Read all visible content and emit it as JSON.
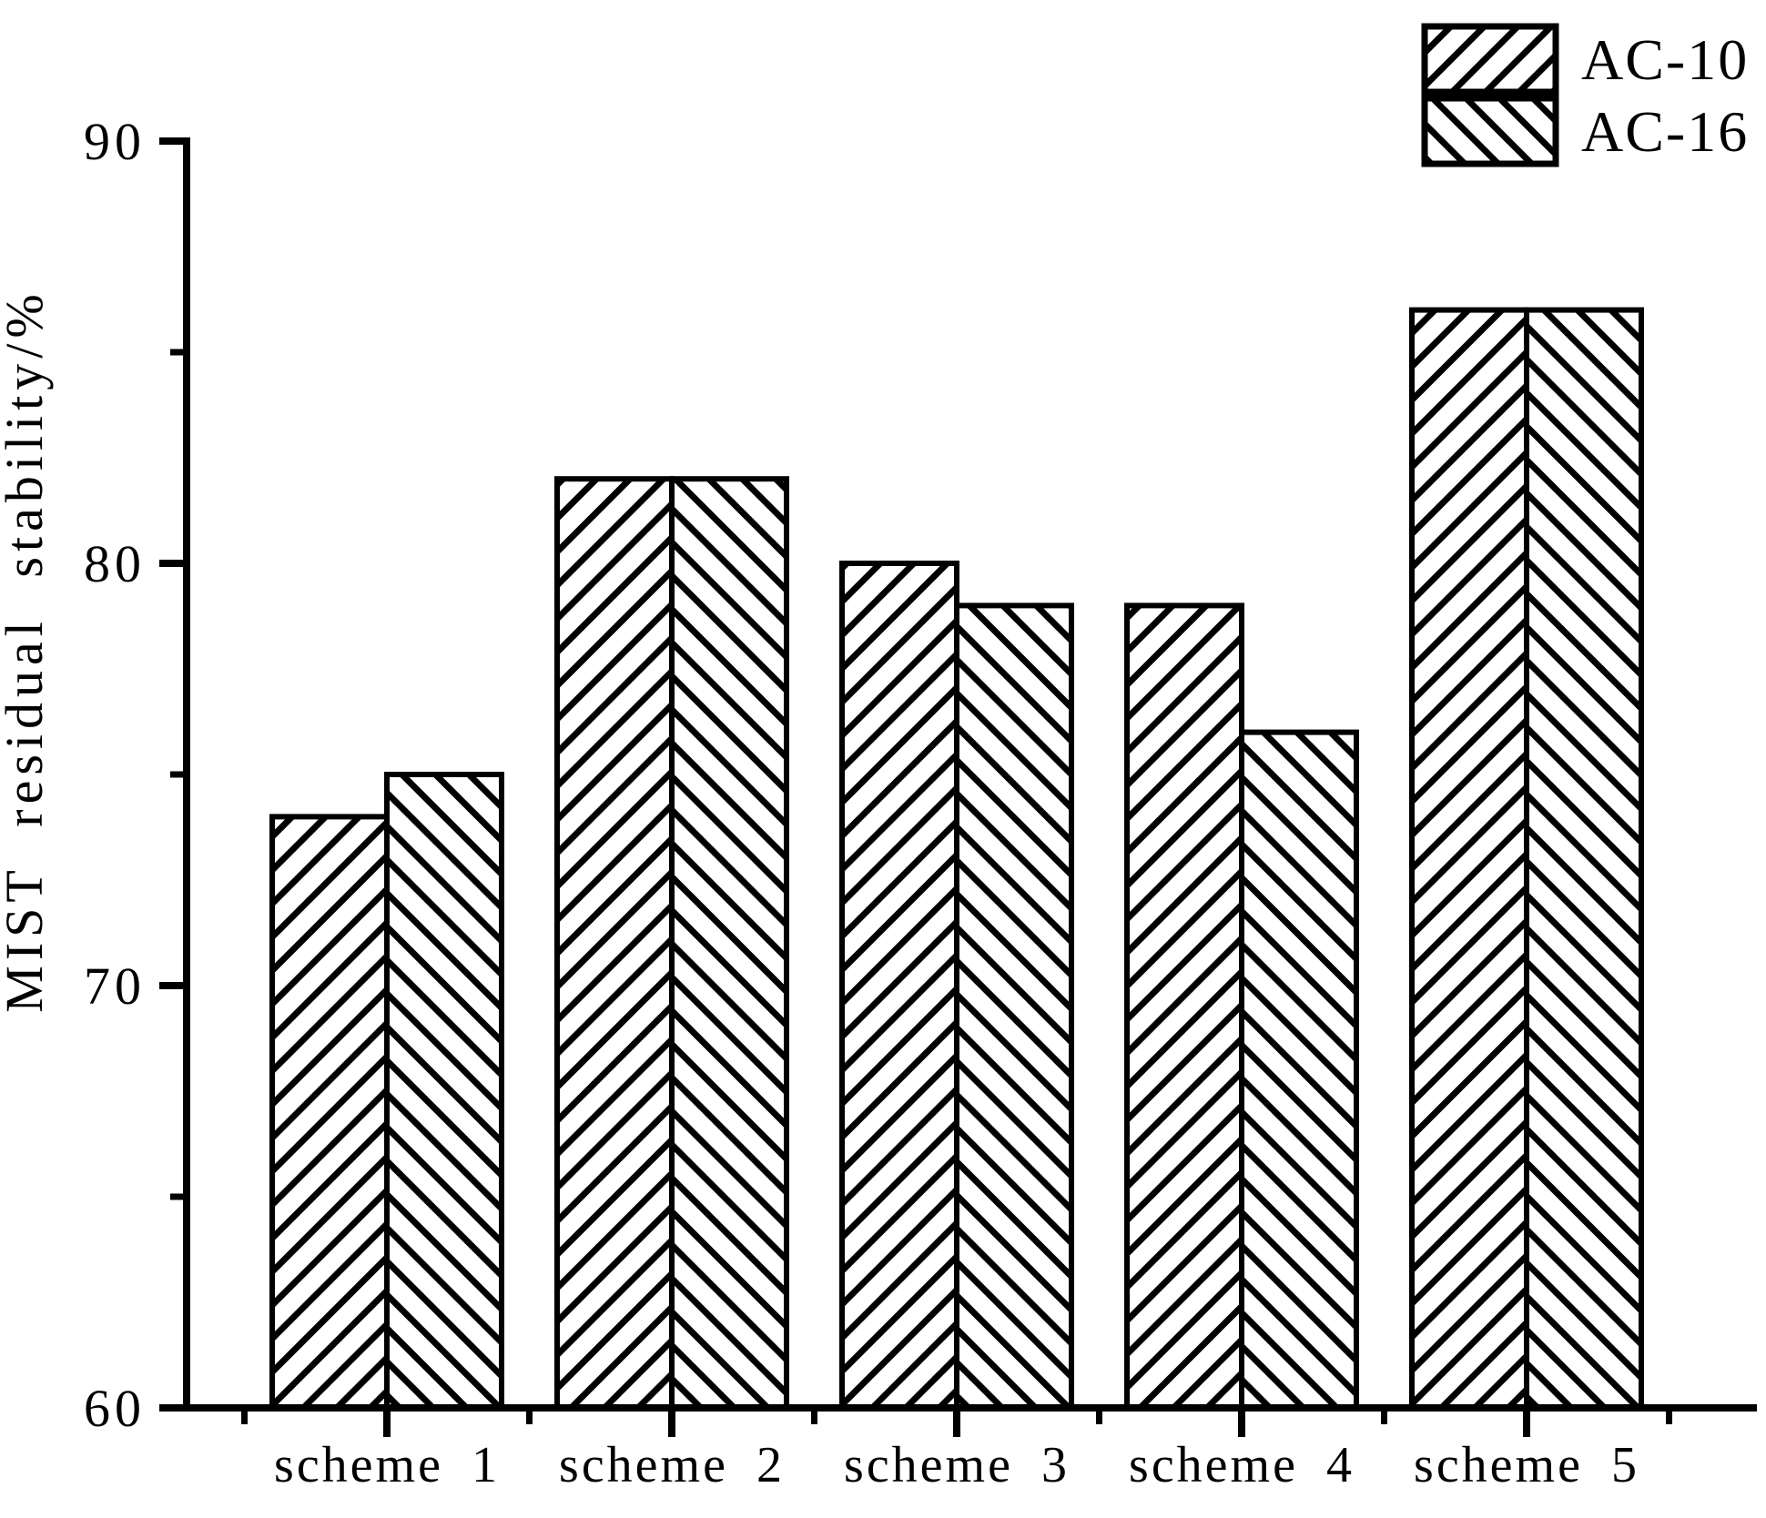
{
  "chart_data": {
    "type": "bar",
    "title": "",
    "ylabel": "MIST residual stability/%",
    "xlabel": "",
    "ylim": [
      60,
      90
    ],
    "ytick_major": [
      60,
      70,
      80,
      90
    ],
    "ytick_minor": [
      65,
      75,
      85
    ],
    "categories": [
      "scheme 1",
      "scheme 2",
      "scheme 3",
      "scheme 4",
      "scheme 5"
    ],
    "series": [
      {
        "name": "AC-10",
        "hatch": "forward-diagonal",
        "values": [
          74,
          82,
          80,
          79,
          86
        ]
      },
      {
        "name": "AC-16",
        "hatch": "backward-diagonal",
        "values": [
          75,
          82,
          79,
          76,
          86
        ]
      }
    ],
    "legend_position": "top-right",
    "grid": false,
    "colors": {
      "stroke": "#000000",
      "bar_fill": "#ffffff",
      "background": "#ffffff"
    }
  }
}
